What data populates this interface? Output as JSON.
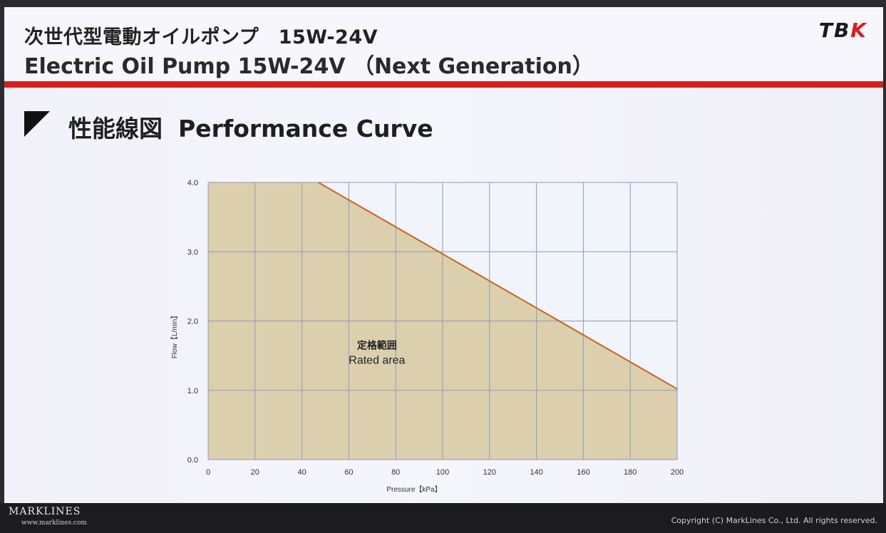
{
  "header": {
    "title_jp": "次世代型電動オイルポンプ　15W-24V",
    "title_en": "Electric Oil Pump 15W-24V （Next Generation）",
    "logo_text": "TBK",
    "accent_color": "#d81e1e"
  },
  "section": {
    "title_jp": "性能線図",
    "title_en": "Performance Curve"
  },
  "chart_data": {
    "type": "area",
    "xlabel": "Pressure【kPa】",
    "ylabel": "Flow【L/min】",
    "xlim": [
      0,
      200
    ],
    "ylim": [
      0.0,
      4.0
    ],
    "x_ticks": [
      "0",
      "20",
      "40",
      "60",
      "80",
      "100",
      "120",
      "140",
      "160",
      "180",
      "200"
    ],
    "y_ticks": [
      "0.0",
      "1.0",
      "2.0",
      "3.0",
      "4.0"
    ],
    "grid": true,
    "series": [
      {
        "x": [
          0,
          47,
          200
        ],
        "y": [
          4.0,
          4.0,
          1.02
        ],
        "line_color": "#c8641e",
        "fill_color": "#dccfae"
      }
    ],
    "annotation": {
      "text_jp": "定格範囲",
      "text_en": "Rated area"
    }
  },
  "footer": {
    "brand": "MARKLINES",
    "url": "www.marklines.com",
    "copyright": "Copyright (C) MarkLines Co., Ltd. All rights reserved."
  }
}
